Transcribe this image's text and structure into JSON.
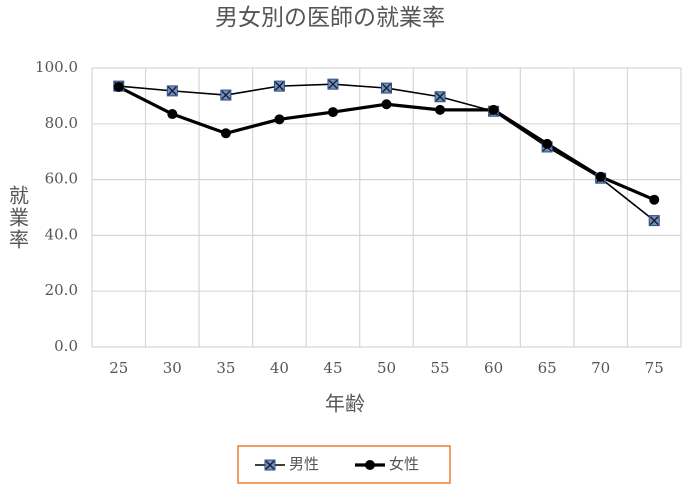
{
  "chart_data": {
    "type": "line",
    "title": "男女別の医師の就業率",
    "x_label": "年齢",
    "y_label": "就業率",
    "categories": [
      "25",
      "30",
      "35",
      "40",
      "45",
      "50",
      "55",
      "60",
      "65",
      "70",
      "75"
    ],
    "series": [
      {
        "name": "男性",
        "color": "#6f8fc8",
        "values": [
          93.5,
          91.8,
          90.3,
          93.5,
          94.2,
          92.8,
          89.7,
          84.5,
          71.7,
          60.5,
          45.3
        ]
      },
      {
        "name": "女性",
        "color": "#000000",
        "values": [
          93.2,
          83.5,
          76.6,
          81.6,
          84.2,
          87.0,
          85.0,
          85.0,
          72.8,
          61.0,
          52.8
        ]
      }
    ],
    "ylim": [
      0,
      100
    ],
    "yticks": [
      {
        "value": 0,
        "label": "0.0"
      },
      {
        "value": 20,
        "label": "20.0"
      },
      {
        "value": 40,
        "label": "40.0"
      },
      {
        "value": 60,
        "label": "60.0"
      },
      {
        "value": 80,
        "label": "80.0"
      },
      {
        "value": 100,
        "label": "100.0"
      }
    ],
    "grid": true,
    "legend": "bottom"
  }
}
